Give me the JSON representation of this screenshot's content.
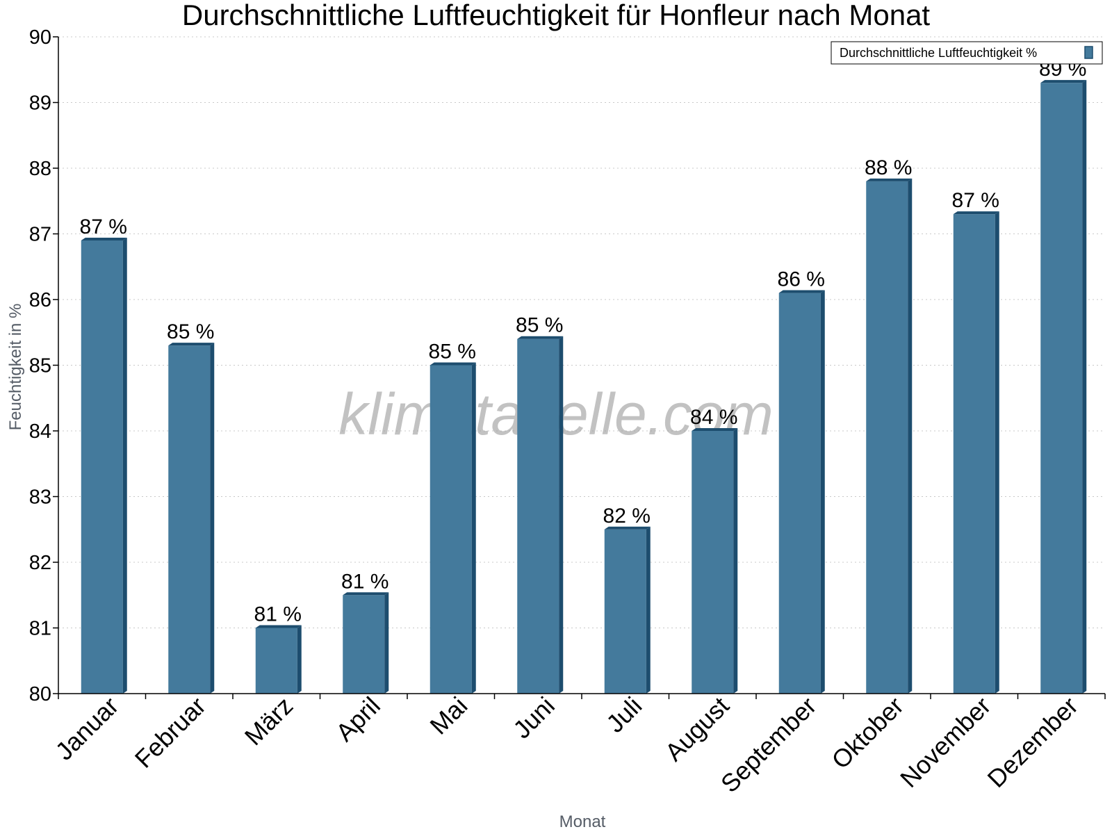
{
  "watermark": "klimatabelle.com",
  "colors": {
    "bar": "#447a9c",
    "bar_side": "#1d4d6e",
    "grid": "#c8c8c8",
    "axis": "#000000"
  },
  "chart_data": {
    "type": "bar",
    "title": "Durchschnittliche Luftfeuchtigkeit für Honfleur nach Monat",
    "xlabel": "Monat",
    "ylabel": "Feuchtigkeit in %",
    "ylim": [
      80,
      90
    ],
    "yticks": [
      "80",
      "81",
      "82",
      "83",
      "84",
      "85",
      "86",
      "87",
      "88",
      "89",
      "90"
    ],
    "grid": "horizontal dotted",
    "legend_position": "top-right",
    "categories": [
      "Januar",
      "Februar",
      "März",
      "April",
      "Mai",
      "Juni",
      "Juli",
      "August",
      "September",
      "Oktober",
      "November",
      "Dezember"
    ],
    "series": [
      {
        "name": "Durchschnittliche Luftfeuchtigkeit %",
        "values": [
          86.9,
          85.3,
          81.0,
          81.5,
          85.0,
          85.4,
          82.5,
          84.0,
          86.1,
          87.8,
          87.3,
          89.3
        ],
        "labels": [
          "87 %",
          "85 %",
          "81 %",
          "81 %",
          "85 %",
          "85 %",
          "82 %",
          "84 %",
          "86 %",
          "88 %",
          "87 %",
          "89 %"
        ]
      }
    ]
  }
}
